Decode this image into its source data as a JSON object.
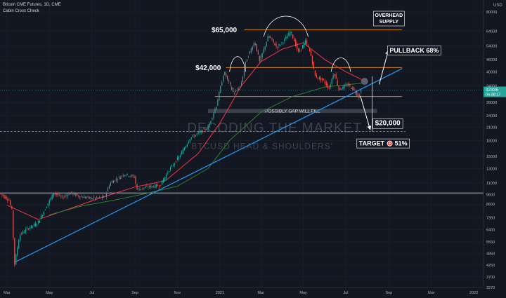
{
  "header": {
    "symbol": "Bitcoin CME Futures, 1D, CME",
    "indicator": "Cabin Cross Check",
    "currency": "USD"
  },
  "chart_data": {
    "type": "candlestick",
    "y_scale": "log",
    "ylim": [
      3270,
      92000
    ],
    "x_range": [
      "2020-02-20",
      "2022-01-15"
    ],
    "x_ticks": [
      {
        "date": "2020-03-01",
        "label": "Mar"
      },
      {
        "date": "2020-05-01",
        "label": "May"
      },
      {
        "date": "2020-07-01",
        "label": "Jul"
      },
      {
        "date": "2020-09-01",
        "label": "Sep"
      },
      {
        "date": "2020-11-01",
        "label": "Nov"
      },
      {
        "date": "2021-01-01",
        "label": "2021"
      },
      {
        "date": "2021-03-01",
        "label": "Mar"
      },
      {
        "date": "2021-05-01",
        "label": "May"
      },
      {
        "date": "2021-07-01",
        "label": "Jul"
      },
      {
        "date": "2021-09-01",
        "label": "Sep"
      },
      {
        "date": "2021-11-01",
        "label": "Nov"
      },
      {
        "date": "2022-01-01",
        "label": "2022"
      }
    ],
    "y_ticks": [
      {
        "value": 80000,
        "label": "80000"
      },
      {
        "value": 64000,
        "label": "64000"
      },
      {
        "value": 54000,
        "label": "54000"
      },
      {
        "value": 46000,
        "label": "46000"
      },
      {
        "value": 40000,
        "label": "40000"
      },
      {
        "value": 34000,
        "label": "34000"
      },
      {
        "value": 28000,
        "label": "28000"
      },
      {
        "value": 24000,
        "label": "24000"
      },
      {
        "value": 21000,
        "label": "21000"
      },
      {
        "value": 18000,
        "label": "18000"
      },
      {
        "value": 15000,
        "label": "15000"
      },
      {
        "value": 13000,
        "label": "13000"
      },
      {
        "value": 11000,
        "label": "11000"
      },
      {
        "value": 9600,
        "label": "9600"
      },
      {
        "value": 8600,
        "label": "8600"
      },
      {
        "value": 7350,
        "label": "7350"
      },
      {
        "value": 6400,
        "label": "6400"
      },
      {
        "value": 5550,
        "label": "5550"
      },
      {
        "value": 4850,
        "label": "4850"
      },
      {
        "value": 4250,
        "label": "4250"
      },
      {
        "value": 3700,
        "label": "3700"
      },
      {
        "value": 3270,
        "label": "3270"
      }
    ],
    "last_price": {
      "value": 32335,
      "label": "32335",
      "countdown": "04:38:17"
    },
    "price_path": [
      [
        "2020-02-20",
        9800
      ],
      [
        "2020-03-05",
        9000
      ],
      [
        "2020-03-09",
        8000
      ],
      [
        "2020-03-12",
        5000
      ],
      [
        "2020-03-13",
        4300
      ],
      [
        "2020-03-20",
        6000
      ],
      [
        "2020-04-01",
        6500
      ],
      [
        "2020-04-15",
        6900
      ],
      [
        "2020-04-30",
        8700
      ],
      [
        "2020-05-08",
        9800
      ],
      [
        "2020-05-20",
        9300
      ],
      [
        "2020-06-01",
        9800
      ],
      [
        "2020-06-15",
        9400
      ],
      [
        "2020-07-01",
        9200
      ],
      [
        "2020-07-20",
        9300
      ],
      [
        "2020-07-28",
        11000
      ],
      [
        "2020-08-10",
        11700
      ],
      [
        "2020-08-17",
        12200
      ],
      [
        "2020-09-01",
        11800
      ],
      [
        "2020-09-05",
        10200
      ],
      [
        "2020-09-20",
        10500
      ],
      [
        "2020-10-08",
        10700
      ],
      [
        "2020-10-21",
        12800
      ],
      [
        "2020-11-05",
        15000
      ],
      [
        "2020-11-20",
        18500
      ],
      [
        "2020-12-01",
        19500
      ],
      [
        "2020-12-16",
        21000
      ],
      [
        "2020-12-28",
        27000
      ],
      [
        "2021-01-08",
        40000
      ],
      [
        "2021-01-22",
        31000
      ],
      [
        "2021-02-01",
        34000
      ],
      [
        "2021-02-09",
        46000
      ],
      [
        "2021-02-21",
        57000
      ],
      [
        "2021-02-28",
        45000
      ],
      [
        "2021-03-13",
        61000
      ],
      [
        "2021-03-25",
        53000
      ],
      [
        "2021-04-05",
        58000
      ],
      [
        "2021-04-14",
        64000
      ],
      [
        "2021-04-25",
        50000
      ],
      [
        "2021-05-05",
        57000
      ],
      [
        "2021-05-12",
        50000
      ],
      [
        "2021-05-19",
        38000
      ],
      [
        "2021-05-31",
        36000
      ],
      [
        "2021-06-08",
        33000
      ],
      [
        "2021-06-15",
        40000
      ],
      [
        "2021-06-22",
        32500
      ],
      [
        "2021-07-05",
        34500
      ],
      [
        "2021-07-15",
        32000
      ],
      [
        "2021-07-20",
        30000
      ],
      [
        "2021-07-24",
        32335
      ]
    ],
    "moving_averages": [
      {
        "color": "#f23645",
        "points": [
          [
            "2020-03-01",
            8500
          ],
          [
            "2020-04-15",
            7200
          ],
          [
            "2020-06-01",
            8200
          ],
          [
            "2020-07-15",
            9300
          ],
          [
            "2020-09-01",
            10500
          ],
          [
            "2020-10-15",
            11300
          ],
          [
            "2020-12-01",
            15500
          ],
          [
            "2021-01-01",
            22000
          ],
          [
            "2021-02-01",
            34000
          ],
          [
            "2021-03-01",
            45000
          ],
          [
            "2021-04-01",
            52000
          ],
          [
            "2021-05-01",
            56000
          ],
          [
            "2021-06-01",
            46000
          ],
          [
            "2021-07-01",
            40000
          ],
          [
            "2021-07-24",
            36500
          ]
        ]
      },
      {
        "color": "#2e7d32",
        "points": [
          [
            "2020-05-01",
            7600
          ],
          [
            "2020-06-15",
            8400
          ],
          [
            "2020-08-01",
            9000
          ],
          [
            "2020-09-15",
            9700
          ],
          [
            "2020-11-01",
            10600
          ],
          [
            "2020-12-15",
            13000
          ],
          [
            "2021-01-15",
            18000
          ],
          [
            "2021-03-01",
            25000
          ],
          [
            "2021-04-15",
            30000
          ],
          [
            "2021-06-01",
            33500
          ],
          [
            "2021-07-24",
            35000
          ]
        ]
      }
    ],
    "trendline": {
      "color": "#2196f3",
      "from": [
        "2020-03-13",
        4400
      ],
      "to": [
        "2021-09-20",
        41500
      ]
    },
    "horizontal_levels": [
      {
        "value": 9800,
        "color": "#d1d4dc",
        "style": "solid",
        "from": "2020-02-20",
        "to": "2022-01-15"
      },
      {
        "value": 65000,
        "color": "#f7931a",
        "style": "solid",
        "from": "2021-02-05",
        "to": "2021-09-20"
      },
      {
        "value": 42000,
        "color": "#f7931a",
        "style": "solid",
        "from": "2021-01-10",
        "to": "2021-09-20"
      },
      {
        "value": 30000,
        "color": "#f7931a",
        "style": "solid",
        "from": "2020-12-25",
        "to": "2021-09-20"
      },
      {
        "value": 20000,
        "color": "#f23645",
        "style": "dashed",
        "from": "2020-02-20",
        "to": "2021-09-25"
      }
    ],
    "gap_band": {
      "from": "2020-12-15",
      "to": "2021-08-15",
      "top": 26000,
      "bottom": 24800,
      "label": "POSSIBLY GAP WILL FILL"
    },
    "labels": {
      "price_65000": "$65,000",
      "price_42000": "$42,000",
      "price_20000": "$20,000",
      "overhead_supply": [
        "OVERHEAD",
        "SUPPLY"
      ],
      "pullback": "PULLBACK 68%",
      "target": "TARGET",
      "target_pct": "51%"
    },
    "watermark": {
      "line1": "DECODING THE MARKET",
      "line2": "BTCUSD  HEAD & SHOULDERS'"
    }
  }
}
